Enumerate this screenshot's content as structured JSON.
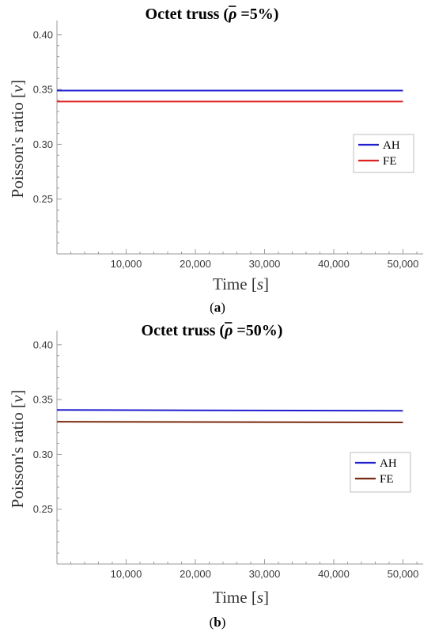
{
  "chart_data": [
    {
      "type": "line",
      "title": "Octet truss (ρ̄ =5%)",
      "title_parts": {
        "prefix": "Octet truss (",
        "symbol": "ρ",
        "suffix": " =5%)"
      },
      "caption": "(a)",
      "caption_parts": {
        "open": "(",
        "letter": "a",
        "close": ")"
      },
      "xlabel": "Time [s]",
      "xlabel_parts": {
        "word": "Time [",
        "var": "s",
        "close": "]"
      },
      "ylabel": "Poisson's ratio [ν]",
      "ylabel_parts": {
        "word": "Poisson's ratio [",
        "var": "ν",
        "close": "]"
      },
      "xlim": [
        0,
        52000
      ],
      "ylim": [
        0.2,
        0.41
      ],
      "xticks": [
        10000,
        20000,
        30000,
        40000,
        50000
      ],
      "xtick_labels": [
        "10,000",
        "20,000",
        "30,000",
        "40,000",
        "50,000"
      ],
      "yticks": [
        0.25,
        0.3,
        0.35,
        0.4
      ],
      "ytick_labels": [
        "0.25",
        "0.30",
        "0.35",
        "0.40"
      ],
      "grid": false,
      "legend_position": "right",
      "series": [
        {
          "name": "AH",
          "color": "#1f1fd0",
          "x": [
            0,
            50000
          ],
          "y": [
            0.349,
            0.349
          ]
        },
        {
          "name": "FE",
          "color": "#e02020",
          "x": [
            0,
            50000
          ],
          "y": [
            0.339,
            0.339
          ]
        }
      ]
    },
    {
      "type": "line",
      "title": "Octet truss (ρ̄ =50%)",
      "title_parts": {
        "prefix": "Octet truss (",
        "symbol": "ρ",
        "suffix": " =50%)"
      },
      "caption": "(b)",
      "caption_parts": {
        "open": "(",
        "letter": "b",
        "close": ")"
      },
      "xlabel": "Time [s]",
      "xlabel_parts": {
        "word": "Time [",
        "var": "s",
        "close": "]"
      },
      "ylabel": "Poisson's ratio [ν]",
      "ylabel_parts": {
        "word": "Poisson's ratio [",
        "var": "ν",
        "close": "]"
      },
      "xlim": [
        0,
        52000
      ],
      "ylim": [
        0.2,
        0.41
      ],
      "xticks": [
        10000,
        20000,
        30000,
        40000,
        50000
      ],
      "xtick_labels": [
        "10,000",
        "20,000",
        "30,000",
        "40,000",
        "50,000"
      ],
      "yticks": [
        0.25,
        0.3,
        0.35,
        0.4
      ],
      "ytick_labels": [
        "0.25",
        "0.30",
        "0.35",
        "0.40"
      ],
      "grid": false,
      "legend_position": "right",
      "series": [
        {
          "name": "AH",
          "color": "#1f1fd0",
          "x": [
            0,
            50000
          ],
          "y": [
            0.3405,
            0.3398
          ]
        },
        {
          "name": "FE",
          "color": "#7a2a10",
          "x": [
            0,
            50000
          ],
          "y": [
            0.3298,
            0.3292
          ]
        }
      ]
    }
  ]
}
